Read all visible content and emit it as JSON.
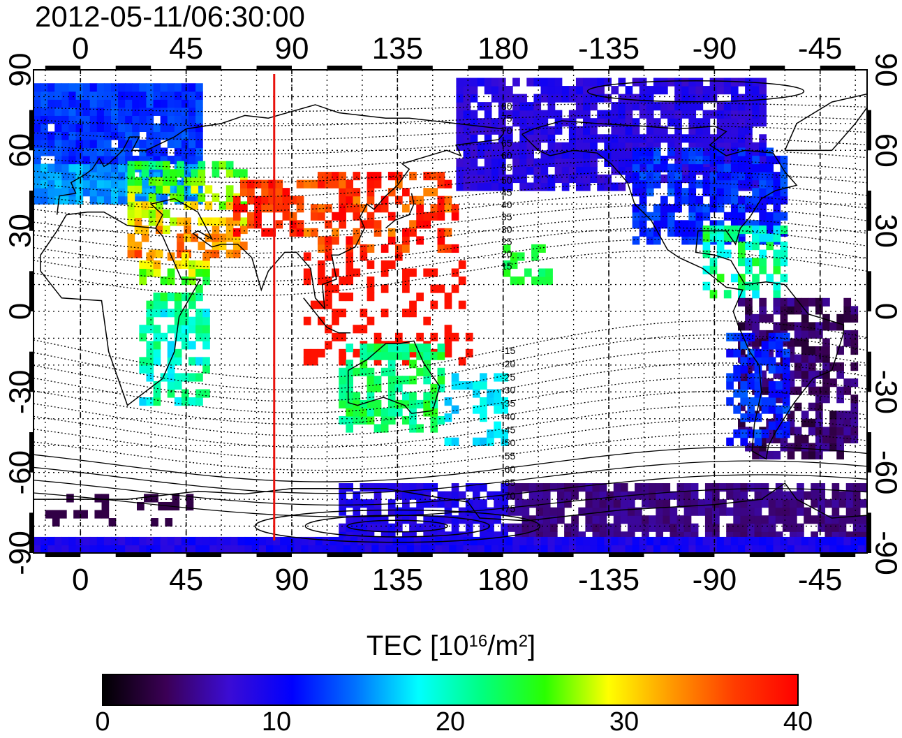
{
  "title": "2012-05-11/06:30:00",
  "map": {
    "lon_ticks_top": [
      "0",
      "45",
      "90",
      "135",
      "180",
      "-135",
      "-90",
      "-45"
    ],
    "lon_ticks_bottom": [
      "0",
      "45",
      "90",
      "135",
      "180",
      "-135",
      "-90",
      "-45"
    ],
    "lat_ticks_left": [
      "90",
      "60",
      "30",
      "0",
      "-30",
      "-60",
      "-90"
    ],
    "lat_ticks_right": [
      "90",
      "60",
      "30",
      "0",
      "-30",
      "-60",
      "-90"
    ],
    "lon_range_deg": [
      -20,
      335
    ],
    "lat_range_deg": [
      -90,
      90
    ],
    "grid": "dotted",
    "marker_line_longitude_deg": 82.5,
    "marker_line_color": "#e8120c",
    "contour_labels": [
      "80",
      "75",
      "70",
      "65",
      "60",
      "55",
      "50",
      "45",
      "40",
      "35",
      "30",
      "25",
      "20",
      "15",
      "-15",
      "-20",
      "-25",
      "-30",
      "-35",
      "-40",
      "-45",
      "-50",
      "-55",
      "-60",
      "-65",
      "-70",
      "-75"
    ]
  },
  "colorbar": {
    "title": "TEC  [10",
    "title_sup1": "16",
    "title_mid": "/m",
    "title_sup2": "2",
    "title_end": "]",
    "ticks": [
      "0",
      "10",
      "20",
      "30",
      "40"
    ],
    "range": [
      0,
      40
    ],
    "colors": [
      "#000000",
      "#3b0055",
      "#3b0cd4",
      "#0000ff",
      "#0072ff",
      "#00ffff",
      "#00ff80",
      "#2aff00",
      "#ffff00",
      "#ff9900",
      "#ff3c00",
      "#ff0000"
    ]
  }
}
